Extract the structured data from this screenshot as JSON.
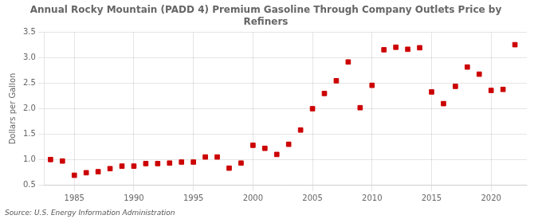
{
  "chart_data": {
    "type": "scatter",
    "title": "Annual Rocky Mountain (PADD 4) Premium Gasoline Through Company Outlets Price by\nRefiners",
    "y_label": "Dollars per Gallon",
    "source": "Source: U.S. Energy Information Administration",
    "x": [
      1983,
      1984,
      1985,
      1986,
      1987,
      1988,
      1989,
      1990,
      1991,
      1992,
      1993,
      1994,
      1995,
      1996,
      1997,
      1998,
      1999,
      2000,
      2001,
      2002,
      2003,
      2004,
      2005,
      2006,
      2007,
      2008,
      2009,
      2010,
      2011,
      2012,
      2013,
      2014,
      2015,
      2016,
      2017,
      2018,
      2019,
      2020,
      2021,
      2022
    ],
    "values": [
      1.0,
      0.97,
      0.69,
      0.74,
      0.76,
      0.82,
      0.87,
      0.87,
      0.92,
      0.92,
      0.93,
      0.95,
      0.95,
      1.05,
      1.05,
      0.83,
      0.93,
      1.28,
      1.22,
      1.1,
      1.3,
      1.58,
      2.0,
      2.3,
      2.55,
      2.92,
      2.02,
      2.46,
      3.16,
      3.21,
      3.17,
      3.2,
      2.33,
      2.1,
      2.44,
      2.82,
      2.68,
      2.36,
      2.38,
      3.26
    ],
    "color": "#cc0000",
    "marker": "square",
    "xlim": [
      1982.5,
      2023
    ],
    "xticks": [
      1985,
      1990,
      1995,
      2000,
      2005,
      2010,
      2015,
      2020
    ],
    "ylim": [
      0.5,
      3.5
    ],
    "yticks": [
      0.5,
      {
        "value": 1.0,
        "label": "1.0"
      },
      1.5,
      {
        "value": 2.0,
        "label": "2.0"
      },
      2.5,
      {
        "value": 3.0,
        "label": "3.0"
      },
      3.5
    ],
    "grid": true
  }
}
